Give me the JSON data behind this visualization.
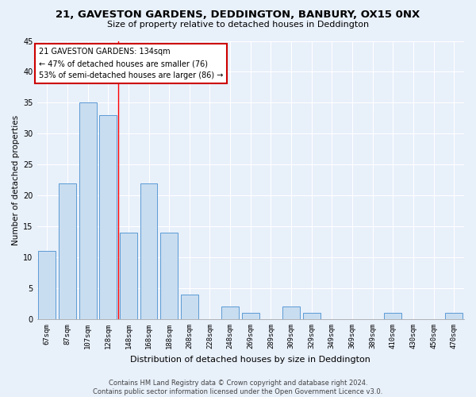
{
  "title": "21, GAVESTON GARDENS, DEDDINGTON, BANBURY, OX15 0NX",
  "subtitle": "Size of property relative to detached houses in Deddington",
  "xlabel": "Distribution of detached houses by size in Deddington",
  "ylabel": "Number of detached properties",
  "categories": [
    "67sqm",
    "87sqm",
    "107sqm",
    "128sqm",
    "148sqm",
    "168sqm",
    "188sqm",
    "208sqm",
    "228sqm",
    "248sqm",
    "269sqm",
    "289sqm",
    "309sqm",
    "329sqm",
    "349sqm",
    "369sqm",
    "389sqm",
    "410sqm",
    "430sqm",
    "450sqm",
    "470sqm"
  ],
  "values": [
    11,
    22,
    35,
    33,
    14,
    22,
    14,
    4,
    0,
    2,
    1,
    0,
    2,
    1,
    0,
    0,
    0,
    1,
    0,
    0,
    1
  ],
  "bar_color": "#c9ddf0",
  "bar_edge_color": "#5b9bd5",
  "red_line_x": 3.5,
  "annotation_text": "21 GAVESTON GARDENS: 134sqm\n← 47% of detached houses are smaller (76)\n53% of semi-detached houses are larger (86) →",
  "annotation_box_color": "#ffffff",
  "annotation_box_edge": "#cc0000",
  "ylim": [
    0,
    45
  ],
  "yticks": [
    0,
    5,
    10,
    15,
    20,
    25,
    30,
    35,
    40,
    45
  ],
  "footer_text": "Contains HM Land Registry data © Crown copyright and database right 2024.\nContains public sector information licensed under the Open Government Licence v3.0.",
  "background_color": "#e8f0fa",
  "axes_bg_color": "#e8f0fa",
  "title_fontsize": 9.5,
  "subtitle_fontsize": 8,
  "ylabel_fontsize": 7.5,
  "xlabel_fontsize": 8,
  "tick_fontsize": 6.5,
  "annotation_fontsize": 7,
  "footer_fontsize": 6
}
